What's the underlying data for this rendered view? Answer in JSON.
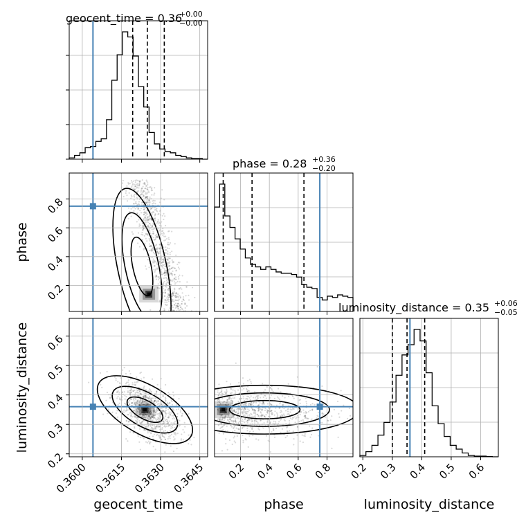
{
  "chart_data": {
    "type": "corner",
    "truth_color": "#4682b4",
    "parameters": [
      {
        "name": "geocent_time",
        "axis_label": "geocent_time",
        "range": [
          0.3595,
          0.3648
        ],
        "ticks": [
          0.36,
          0.3615,
          0.363,
          0.3645
        ],
        "tick_labels": [
          "0.3600",
          "0.3615",
          "0.3630",
          "0.3645"
        ],
        "truth": 0.36041,
        "quantiles": [
          0.36193,
          0.36249,
          0.36314
        ],
        "title": {
          "label": "geocent_time = 0.36",
          "plus": "+0.00",
          "minus": "−0.00"
        },
        "hist": [
          0.01,
          0.03,
          0.05,
          0.09,
          0.1,
          0.14,
          0.16,
          0.31,
          0.62,
          0.82,
          1.0,
          0.96,
          0.81,
          0.57,
          0.41,
          0.21,
          0.12,
          0.08,
          0.06,
          0.05,
          0.03,
          0.02,
          0.01,
          0.005,
          0.005,
          0.0
        ]
      },
      {
        "name": "phase",
        "axis_label": "phase",
        "range": [
          0.02,
          0.98
        ],
        "ticks": [
          0.2,
          0.4,
          0.6,
          0.8
        ],
        "tick_labels": [
          "0.2",
          "0.4",
          "0.6",
          "0.8"
        ],
        "truth": 0.75,
        "quantiles": [
          0.08,
          0.28,
          0.64
        ],
        "title": {
          "label": "phase = 0.28",
          "plus": "+0.36",
          "minus": "−0.20"
        },
        "hist": [
          0.82,
          1.0,
          0.75,
          0.66,
          0.57,
          0.49,
          0.42,
          0.37,
          0.35,
          0.33,
          0.35,
          0.33,
          0.31,
          0.3,
          0.3,
          0.29,
          0.27,
          0.21,
          0.19,
          0.18,
          0.11,
          0.09,
          0.12,
          0.11,
          0.13,
          0.12,
          0.11
        ]
      },
      {
        "name": "luminosity_distance",
        "axis_label": "luminosity_distance",
        "range": [
          0.19,
          0.66
        ],
        "ticks": [
          0.2,
          0.3,
          0.4,
          0.5,
          0.6
        ],
        "tick_labels": [
          "0.2",
          "0.3",
          "0.4",
          "0.5",
          "0.6"
        ],
        "truth": 0.36,
        "quantiles": [
          0.3,
          0.35,
          0.41
        ],
        "title": {
          "label": "luminosity_distance = 0.35",
          "plus": "+0.06",
          "minus": "−0.05"
        },
        "hist": [
          0.01,
          0.04,
          0.09,
          0.17,
          0.27,
          0.43,
          0.64,
          0.8,
          0.88,
          1.0,
          0.91,
          0.66,
          0.4,
          0.26,
          0.16,
          0.09,
          0.06,
          0.03,
          0.01,
          0.005,
          0.005,
          0.002,
          0.0
        ]
      }
    ],
    "scatter_pairs": [
      {
        "x": "geocent_time",
        "y": "phase",
        "center": [
          0.36255,
          0.14
        ],
        "spread": [
          0.0004,
          0.09
        ],
        "density_peak": [
          0.36255,
          0.14
        ]
      },
      {
        "x": "geocent_time",
        "y": "luminosity_distance",
        "center": [
          0.3625,
          0.345
        ],
        "spread": [
          0.0006,
          0.045
        ],
        "density_peak": [
          0.3624,
          0.35
        ]
      },
      {
        "x": "phase",
        "y": "luminosity_distance",
        "center": [
          0.45,
          0.35
        ],
        "spread": [
          0.22,
          0.045
        ],
        "density_peak": [
          0.08,
          0.35
        ]
      }
    ],
    "grid": true,
    "legend": "none"
  }
}
